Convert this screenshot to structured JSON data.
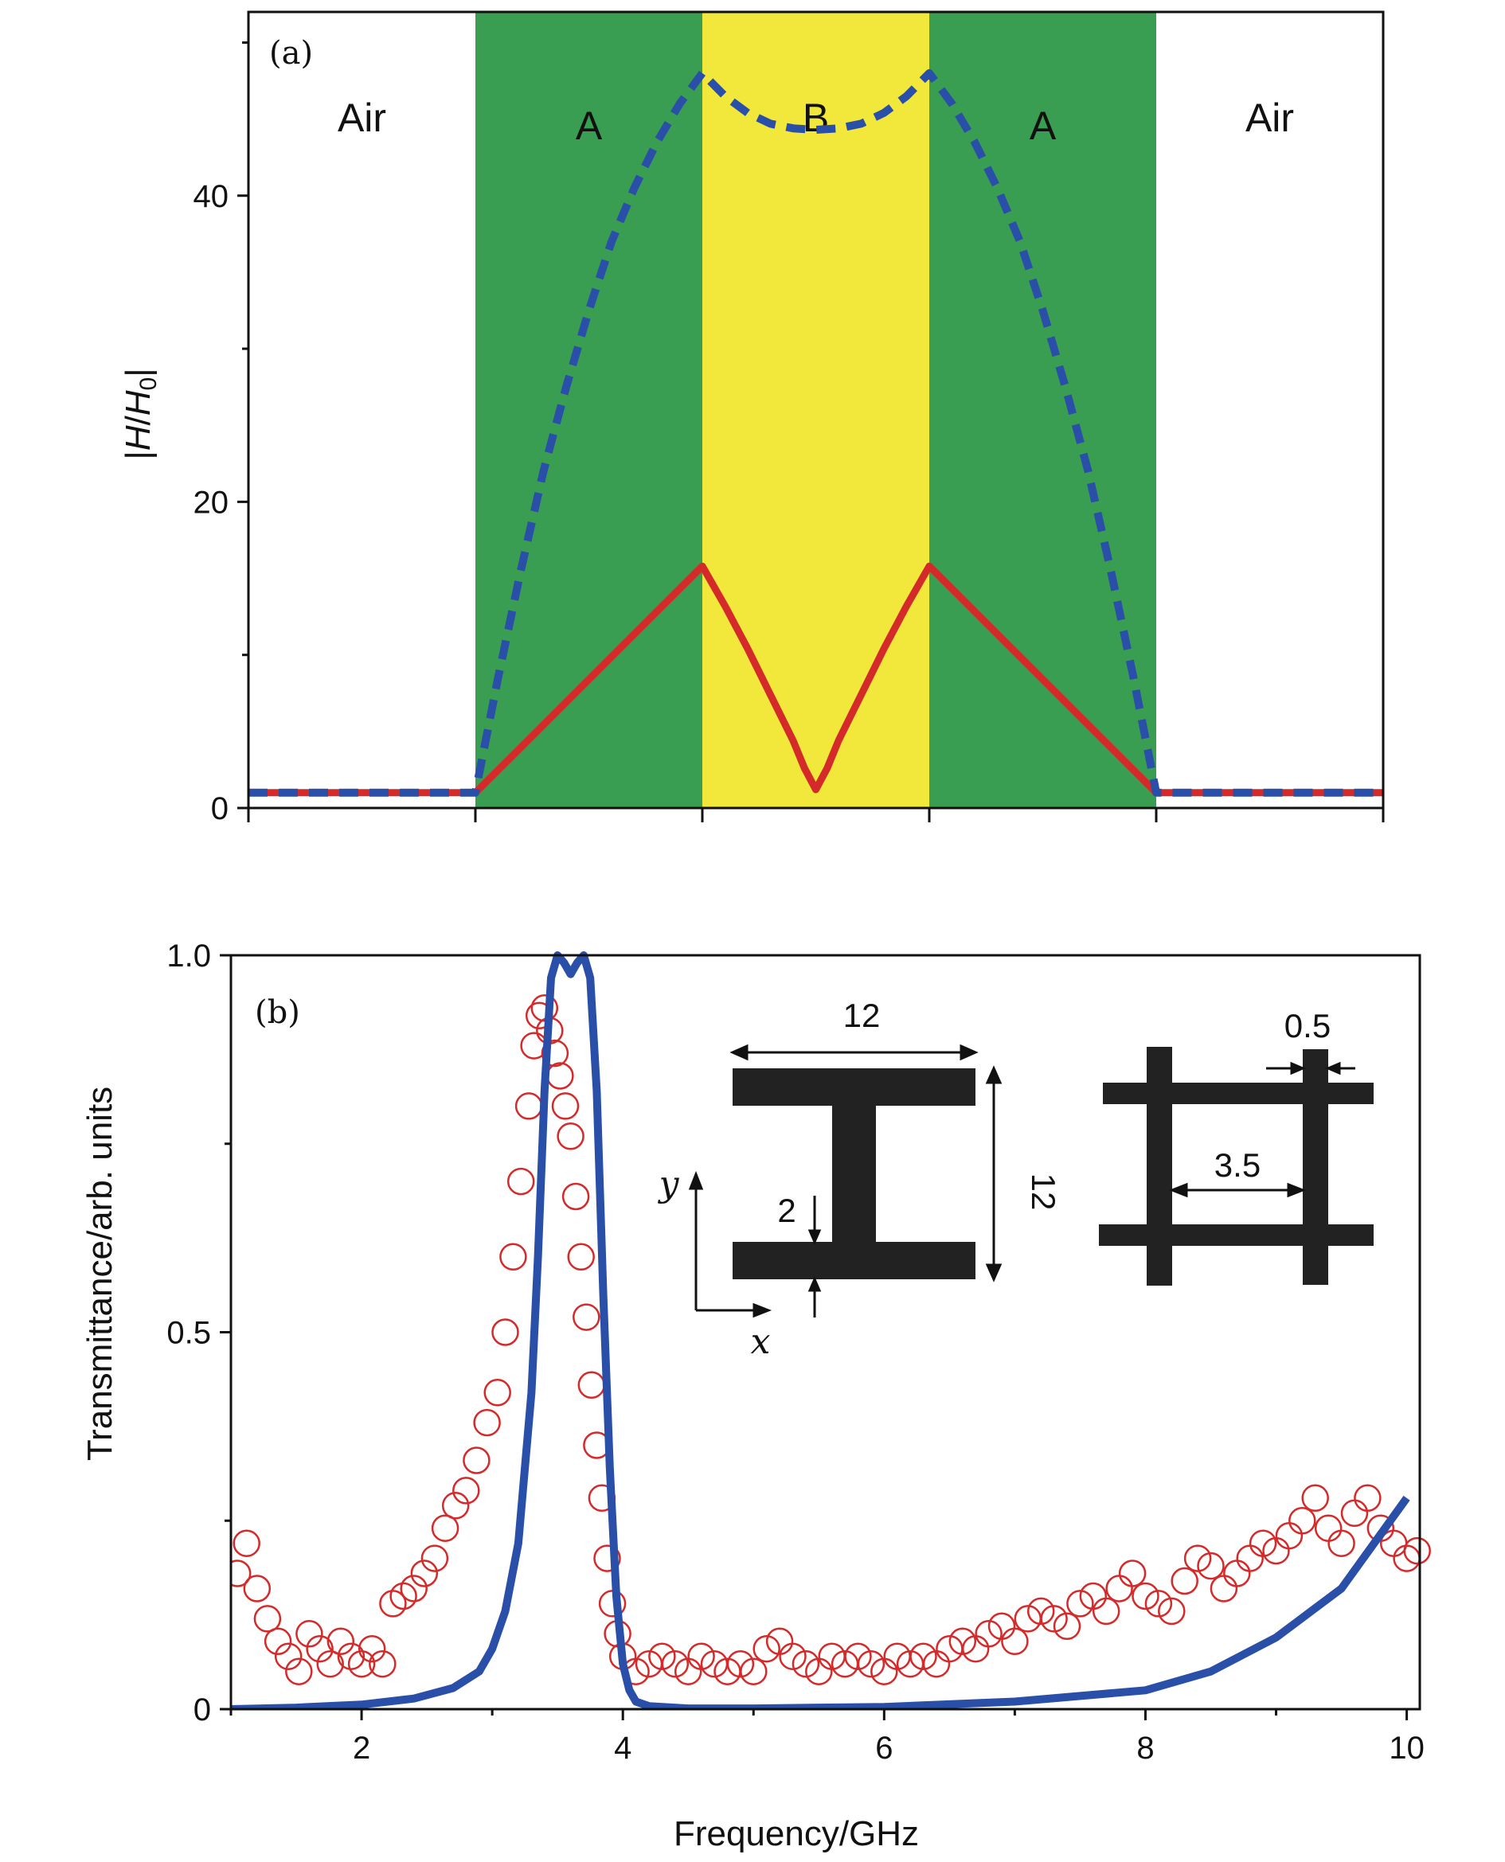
{
  "chart_data": [
    {
      "type": "line",
      "panel_label": "(a)",
      "ylabel_prefix": "|",
      "ylabel_H": "H",
      "ylabel_slash": "/",
      "ylabel_H0": "H",
      "ylabel_sub": "0",
      "ylabel_suffix": "|",
      "xlim": [
        0,
        5
      ],
      "ylim": [
        0,
        52
      ],
      "yticks": [
        0,
        20,
        40
      ],
      "yticks_labels": [
        "0",
        "20",
        "40"
      ],
      "regions": [
        {
          "label": "Air",
          "start": 0,
          "end": 1,
          "color": "#ffffff"
        },
        {
          "label": "A",
          "start": 1,
          "end": 2,
          "color": "#3a9e52"
        },
        {
          "label": "B",
          "start": 2,
          "end": 3,
          "color": "#f2e83c"
        },
        {
          "label": "A",
          "start": 3,
          "end": 4,
          "color": "#3a9e52"
        },
        {
          "label": "Air",
          "start": 4,
          "end": 5,
          "color": "#ffffff"
        }
      ],
      "series": [
        {
          "name": "dashed-blue",
          "style": "dashed",
          "color": "#2a4fa8",
          "x": [
            0,
            1,
            1.1,
            1.2,
            1.3,
            1.4,
            1.5,
            1.6,
            1.7,
            1.8,
            1.9,
            2.0,
            2.1,
            2.2,
            2.3,
            2.4,
            2.5,
            2.6,
            2.7,
            2.8,
            2.9,
            3.0,
            3.1,
            3.2,
            3.3,
            3.4,
            3.5,
            3.6,
            3.7,
            3.8,
            3.9,
            4.0,
            5
          ],
          "y": [
            1,
            1,
            8.5,
            15.5,
            22,
            27.5,
            32.5,
            37,
            40.5,
            43.5,
            46,
            48,
            46.5,
            45.4,
            44.7,
            44.4,
            44.3,
            44.4,
            44.7,
            45.4,
            46.5,
            48,
            46,
            43.5,
            40.5,
            37,
            32.5,
            27.5,
            22,
            15.5,
            8.5,
            1,
            1
          ]
        },
        {
          "name": "solid-red",
          "style": "solid",
          "color": "#d42a2a",
          "x": [
            0,
            1,
            2,
            2.1,
            2.2,
            2.3,
            2.4,
            2.45,
            2.5,
            2.55,
            2.6,
            2.7,
            2.8,
            2.9,
            3,
            4,
            5
          ],
          "y": [
            1,
            1,
            15.8,
            13.2,
            10.4,
            7.4,
            4.4,
            2.6,
            1.2,
            2.6,
            4.4,
            7.4,
            10.4,
            13.2,
            15.8,
            1,
            1
          ]
        }
      ]
    },
    {
      "type": "line+scatter",
      "panel_label": "(b)",
      "xlabel": "Frequency/GHz",
      "ylabel": "Transmittance/arb. units",
      "xlim": [
        1,
        10.1
      ],
      "ylim": [
        0,
        1.0
      ],
      "xticks": [
        2,
        4,
        6,
        8,
        10
      ],
      "xticks_labels": [
        "2",
        "4",
        "6",
        "8",
        "10"
      ],
      "yticks": [
        0,
        0.5,
        1.0
      ],
      "yticks_labels": [
        "0",
        "0.5",
        "1.0"
      ],
      "series": [
        {
          "name": "simulation",
          "style": "solid",
          "color": "#2a4fa8",
          "x": [
            1.0,
            1.5,
            2.0,
            2.4,
            2.7,
            2.9,
            3.0,
            3.1,
            3.2,
            3.3,
            3.35,
            3.4,
            3.45,
            3.5,
            3.55,
            3.6,
            3.65,
            3.7,
            3.75,
            3.8,
            3.85,
            3.9,
            3.95,
            4.0,
            4.05,
            4.1,
            4.2,
            4.5,
            5.0,
            6.0,
            7.0,
            8.0,
            8.5,
            9.0,
            9.5,
            10.0
          ],
          "y": [
            0.0,
            0.002,
            0.006,
            0.014,
            0.028,
            0.05,
            0.08,
            0.13,
            0.22,
            0.42,
            0.6,
            0.82,
            0.97,
            1.0,
            0.99,
            0.975,
            0.99,
            1.0,
            0.97,
            0.82,
            0.55,
            0.32,
            0.15,
            0.06,
            0.025,
            0.01,
            0.004,
            0.001,
            0.001,
            0.003,
            0.01,
            0.025,
            0.05,
            0.095,
            0.16,
            0.28
          ]
        },
        {
          "name": "measurement",
          "style": "open-circles",
          "color": "#d42a2a",
          "x": [
            1.05,
            1.12,
            1.2,
            1.28,
            1.36,
            1.44,
            1.52,
            1.6,
            1.68,
            1.76,
            1.84,
            1.92,
            2.0,
            2.08,
            2.16,
            2.24,
            2.32,
            2.4,
            2.48,
            2.56,
            2.64,
            2.72,
            2.8,
            2.88,
            2.96,
            3.04,
            3.1,
            3.16,
            3.22,
            3.28,
            3.32,
            3.36,
            3.4,
            3.44,
            3.48,
            3.52,
            3.56,
            3.6,
            3.64,
            3.68,
            3.72,
            3.76,
            3.8,
            3.84,
            3.88,
            3.92,
            3.96,
            4.0,
            4.1,
            4.2,
            4.3,
            4.4,
            4.5,
            4.6,
            4.7,
            4.8,
            4.9,
            5.0,
            5.1,
            5.2,
            5.3,
            5.4,
            5.5,
            5.6,
            5.7,
            5.8,
            5.9,
            6.0,
            6.1,
            6.2,
            6.3,
            6.4,
            6.5,
            6.6,
            6.7,
            6.8,
            6.9,
            7.0,
            7.1,
            7.2,
            7.3,
            7.4,
            7.5,
            7.6,
            7.7,
            7.8,
            7.9,
            8.0,
            8.1,
            8.2,
            8.3,
            8.4,
            8.5,
            8.6,
            8.7,
            8.8,
            8.9,
            9.0,
            9.1,
            9.2,
            9.3,
            9.4,
            9.5,
            9.6,
            9.7,
            9.8,
            9.9,
            10.0,
            10.08
          ],
          "y": [
            0.18,
            0.22,
            0.16,
            0.12,
            0.09,
            0.07,
            0.05,
            0.1,
            0.08,
            0.06,
            0.09,
            0.07,
            0.06,
            0.08,
            0.06,
            0.14,
            0.15,
            0.16,
            0.18,
            0.2,
            0.24,
            0.27,
            0.29,
            0.33,
            0.38,
            0.42,
            0.5,
            0.6,
            0.7,
            0.8,
            0.88,
            0.92,
            0.93,
            0.9,
            0.87,
            0.84,
            0.8,
            0.76,
            0.68,
            0.6,
            0.52,
            0.43,
            0.35,
            0.28,
            0.2,
            0.14,
            0.1,
            0.07,
            0.05,
            0.06,
            0.07,
            0.06,
            0.05,
            0.07,
            0.06,
            0.05,
            0.06,
            0.05,
            0.08,
            0.09,
            0.07,
            0.06,
            0.05,
            0.07,
            0.06,
            0.07,
            0.06,
            0.05,
            0.07,
            0.06,
            0.07,
            0.06,
            0.08,
            0.09,
            0.08,
            0.1,
            0.11,
            0.09,
            0.12,
            0.13,
            0.12,
            0.11,
            0.14,
            0.15,
            0.13,
            0.16,
            0.18,
            0.15,
            0.14,
            0.13,
            0.17,
            0.2,
            0.19,
            0.16,
            0.18,
            0.2,
            0.22,
            0.21,
            0.23,
            0.25,
            0.28,
            0.24,
            0.22,
            0.26,
            0.28,
            0.24,
            0.22,
            0.2,
            0.21
          ]
        }
      ],
      "inset": {
        "unit_cell_labels": {
          "width": "12",
          "height": "12",
          "gap": "2",
          "x_axis": "x",
          "y_axis": "y"
        },
        "grid_labels": {
          "line_width": "0.5",
          "spacing": "3.5"
        }
      }
    }
  ]
}
